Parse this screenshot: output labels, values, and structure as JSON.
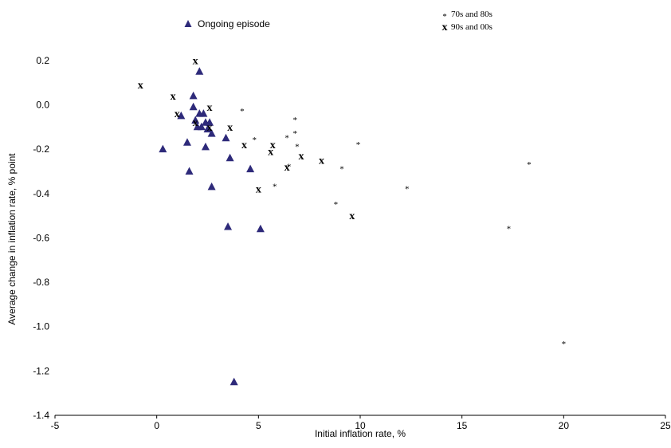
{
  "chart_data": {
    "type": "scatter",
    "xlabel": "Initial inflation rate, %",
    "ylabel": "Average change in inflation rate, % point",
    "xlim": [
      -5,
      25
    ],
    "ylim": [
      -1.4,
      0.3
    ],
    "xticks": [
      "-5",
      "0",
      "5",
      "10",
      "15",
      "20",
      "25"
    ],
    "yticks": [
      "0.2",
      "0.0",
      "-0.2",
      "-0.4",
      "-0.6",
      "-0.8",
      "-1.0",
      "-1.2",
      "-1.4"
    ],
    "grid": false,
    "legend": {
      "placement": "top",
      "entries": [
        {
          "series": "ongoing",
          "label": "Ongoing episode",
          "marker_char": "▲"
        },
        {
          "series": "s7080",
          "label": "70s and 80s",
          "marker_char": "*"
        },
        {
          "series": "s9000",
          "label": "90s and 00s",
          "marker_char": "x"
        }
      ]
    },
    "series": [
      {
        "name": "Ongoing episode",
        "key": "ongoing",
        "marker": "triangle",
        "color": "#2e2a7a",
        "points": [
          [
            0.3,
            -0.2
          ],
          [
            1.2,
            -0.05
          ],
          [
            1.5,
            -0.17
          ],
          [
            1.6,
            -0.3
          ],
          [
            1.8,
            0.04
          ],
          [
            1.8,
            -0.01
          ],
          [
            1.9,
            -0.07
          ],
          [
            2.0,
            -0.1
          ],
          [
            2.1,
            0.15
          ],
          [
            2.1,
            -0.04
          ],
          [
            2.2,
            -0.1
          ],
          [
            2.3,
            -0.04
          ],
          [
            2.4,
            -0.08
          ],
          [
            2.4,
            -0.19
          ],
          [
            2.5,
            -0.11
          ],
          [
            2.6,
            -0.08
          ],
          [
            2.7,
            -0.13
          ],
          [
            2.7,
            -0.37
          ],
          [
            3.4,
            -0.15
          ],
          [
            3.5,
            -0.55
          ],
          [
            3.6,
            -0.24
          ],
          [
            3.8,
            -1.25
          ],
          [
            4.6,
            -0.29
          ],
          [
            5.1,
            -0.56
          ]
        ]
      },
      {
        "name": "70s and 80s",
        "key": "s7080",
        "marker": "star",
        "color": "#000000",
        "points": [
          [
            4.2,
            -0.02
          ],
          [
            4.8,
            -0.15
          ],
          [
            5.8,
            -0.36
          ],
          [
            6.4,
            -0.14
          ],
          [
            6.5,
            -0.27
          ],
          [
            6.8,
            -0.06
          ],
          [
            6.8,
            -0.12
          ],
          [
            6.9,
            -0.18
          ],
          [
            8.8,
            -0.44
          ],
          [
            9.1,
            -0.28
          ],
          [
            9.9,
            -0.17
          ],
          [
            12.3,
            -0.37
          ],
          [
            17.3,
            -0.55
          ],
          [
            18.3,
            -0.26
          ],
          [
            20.0,
            -1.07
          ]
        ]
      },
      {
        "name": "90s and 00s",
        "key": "s9000",
        "marker": "x",
        "color": "#000000",
        "points": [
          [
            -0.8,
            0.09
          ],
          [
            0.8,
            0.04
          ],
          [
            1.0,
            -0.04
          ],
          [
            1.9,
            0.2
          ],
          [
            1.9,
            -0.08
          ],
          [
            2.6,
            -0.01
          ],
          [
            2.6,
            -0.1
          ],
          [
            3.6,
            -0.1
          ],
          [
            4.3,
            -0.18
          ],
          [
            5.0,
            -0.38
          ],
          [
            5.6,
            -0.21
          ],
          [
            5.7,
            -0.18
          ],
          [
            6.4,
            -0.28
          ],
          [
            7.1,
            -0.23
          ],
          [
            8.1,
            -0.25
          ],
          [
            9.6,
            -0.5
          ]
        ]
      }
    ]
  }
}
